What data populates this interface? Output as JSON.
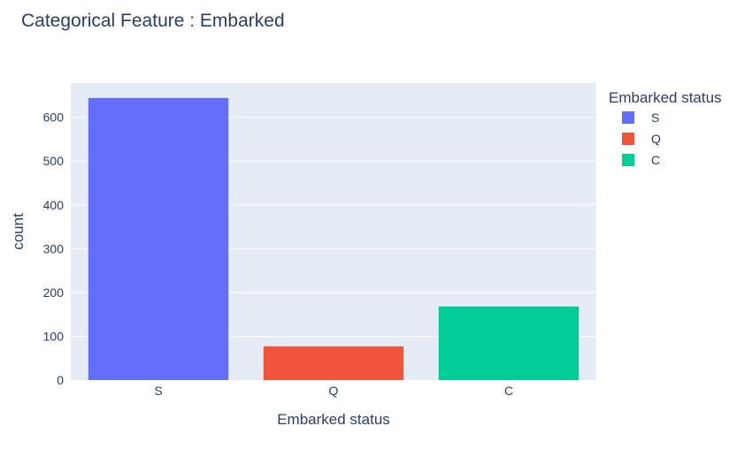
{
  "chart_data": {
    "type": "bar",
    "title": "Categorical Feature : Embarked",
    "xlabel": "Embarked status",
    "ylabel": "count",
    "categories": [
      "S",
      "Q",
      "C"
    ],
    "values": [
      644,
      77,
      168
    ],
    "colors": [
      "#636efa",
      "#ef553b",
      "#00cc96"
    ],
    "ylim": [
      0,
      678
    ],
    "yticks": [
      0,
      100,
      200,
      300,
      400,
      500,
      600
    ],
    "grid": true,
    "plot_background": "#e5ecf6",
    "legend": {
      "title": "Embarked status",
      "placement": "right",
      "items": [
        {
          "label": "S",
          "color": "#636efa"
        },
        {
          "label": "Q",
          "color": "#ef553b"
        },
        {
          "label": "C",
          "color": "#00cc96"
        }
      ]
    }
  }
}
